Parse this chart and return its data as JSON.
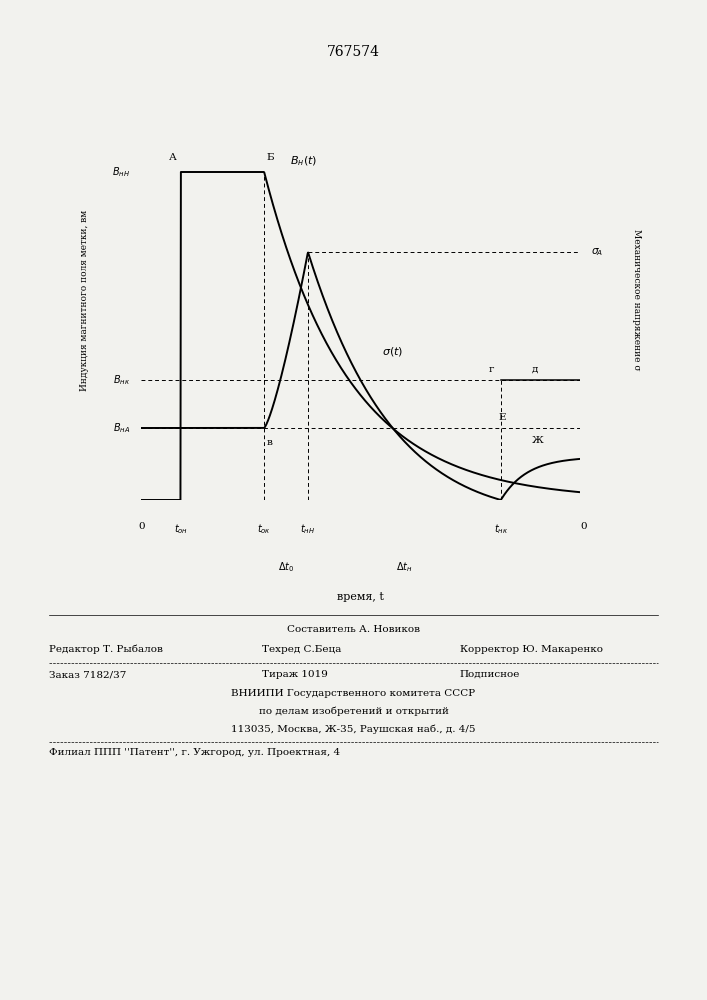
{
  "title": "767574",
  "bg_color": "#f2f2ee",
  "left_ylabel": "Индукция магнитного поля метки, вм",
  "right_ylabel": "Механическое напряжение σ",
  "xlabel": "время, t",
  "footer_sestavitel": "Составитель А. Новиков",
  "footer_redaktor": "Редактор Т. Рыбалов",
  "footer_tehred": "Техред С.Беца",
  "footer_korrektor": "Корректор Ю. Макаренко",
  "footer_zakaz": "Заказ 7182/37",
  "footer_tirazh": "Тираж 1019",
  "footer_podpisnoe": "Подписное",
  "footer_vniip1": "ВНИИПИ Государственного комитета СССР",
  "footer_vniip2": "по делам изобретений и открытий",
  "footer_vniip3": "113035, Москва, Ж-35, Раушская наб., д. 4/5",
  "footer_filial": "Филиал ППП ''Патент'', г. Ужгород, ул. Проектная, 4"
}
